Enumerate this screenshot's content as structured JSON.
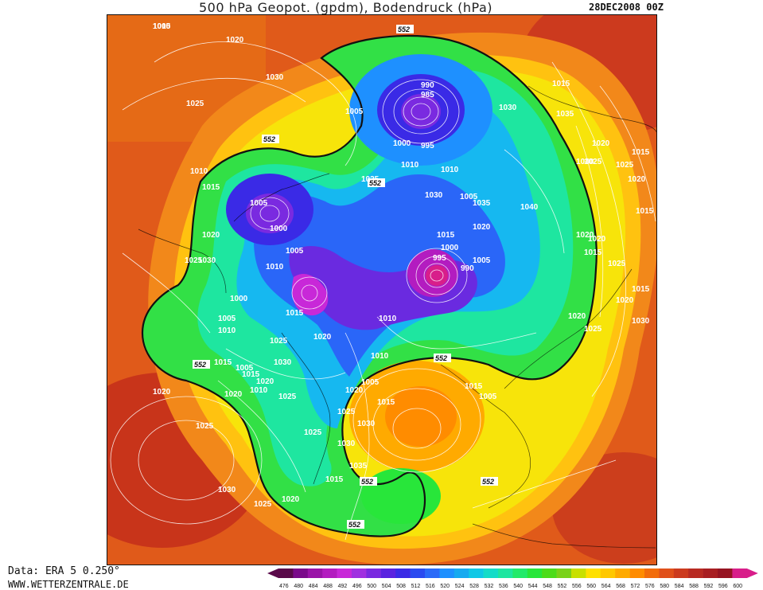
{
  "header": {
    "title": "500 hPa Geopot. (gpdm), Bodendruck (hPa)",
    "date": "28DEC2008 00Z"
  },
  "footer": {
    "source": "Data: ERA 5 0.250°",
    "website": "WWW.WETTERZENTRALE.DE"
  },
  "colorbar": {
    "values": [
      "476",
      "480",
      "484",
      "488",
      "492",
      "496",
      "500",
      "504",
      "508",
      "512",
      "516",
      "520",
      "524",
      "528",
      "532",
      "536",
      "540",
      "544",
      "548",
      "552",
      "556",
      "560",
      "564",
      "568",
      "572",
      "576",
      "580",
      "584",
      "588",
      "592",
      "596",
      "600"
    ],
    "colors": [
      "#5a0a4a",
      "#7a0a8a",
      "#9a14a8",
      "#b31cc0",
      "#c828d8",
      "#a030e0",
      "#7a2ae0",
      "#5a22e0",
      "#3a2ae6",
      "#2a4af0",
      "#2a6af8",
      "#1e90ff",
      "#16aaf0",
      "#10c8e6",
      "#14dcc8",
      "#1ee6a0",
      "#22ea6a",
      "#28e63a",
      "#4cdc1a",
      "#7ad21a",
      "#c8e000",
      "#ffe000",
      "#ffc800",
      "#ffaa00",
      "#ff8c00",
      "#f26c0a",
      "#e0501a",
      "#cc3a1e",
      "#b82a22",
      "#a81e22",
      "#961422",
      "#d81e8a"
    ]
  },
  "map_labels": {
    "pressure": [
      "1015",
      "1020",
      "1025",
      "1030",
      "1005",
      "990",
      "985",
      "995",
      "1000",
      "1010",
      "1035",
      "1040",
      "1025",
      "1020",
      "1015",
      "1030",
      "1010",
      "1005",
      "1000",
      "995",
      "990",
      "1005",
      "1015",
      "1020",
      "1025",
      "1030",
      "1035",
      "1040",
      "1015",
      "1020",
      "1025",
      "1015",
      "1020",
      "1025",
      "1020",
      "1015",
      "1020",
      "1015",
      "1025",
      "1020",
      "1030",
      "1025",
      "1030",
      "1025",
      "1020",
      "1015",
      "1010",
      "1005",
      "1000",
      "1005",
      "1010",
      "1015",
      "1020",
      "1025",
      "1030",
      "1025",
      "1020",
      "1015",
      "1010",
      "1005",
      "1000",
      "1005",
      "1010",
      "1015",
      "1020",
      "1025",
      "1030",
      "1035",
      "1030",
      "1025",
      "1020",
      "1015",
      "1010",
      "1005",
      "1015",
      "1020",
      "1025",
      "1030",
      "1025",
      "1020",
      "1015",
      "1005",
      "1010",
      "1000"
    ],
    "geopotential": [
      "552",
      "552",
      "552",
      "552",
      "552",
      "552",
      "552",
      "552"
    ]
  }
}
